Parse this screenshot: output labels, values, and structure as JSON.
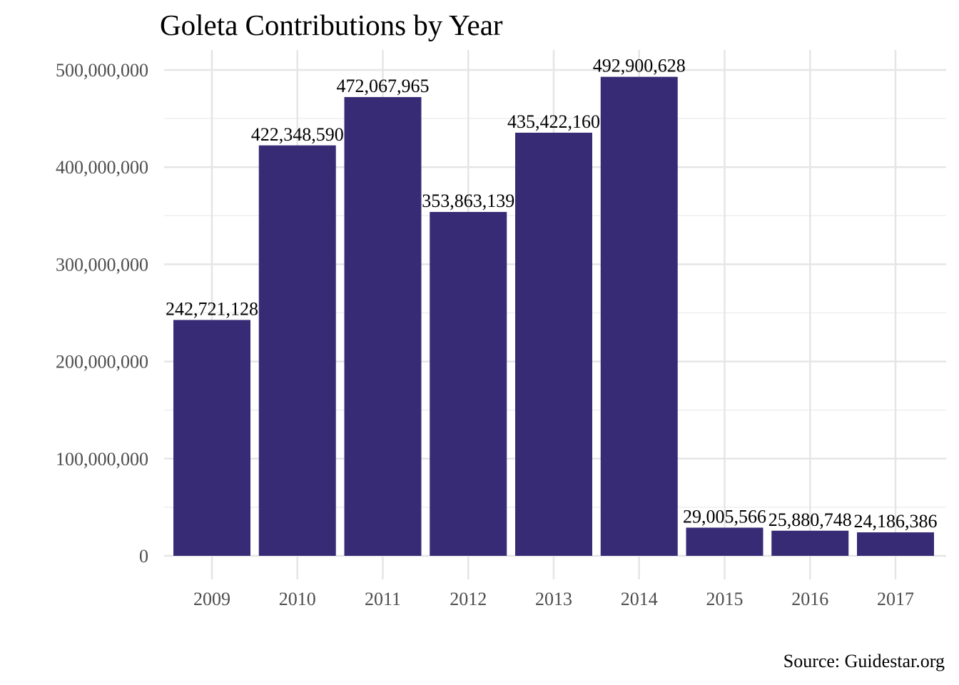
{
  "chart_data": {
    "type": "bar",
    "title": "Goleta Contributions by Year",
    "caption": "Source: Guidestar.org",
    "xlabel": "",
    "ylabel": "",
    "categories": [
      "2009",
      "2010",
      "2011",
      "2012",
      "2013",
      "2014",
      "2015",
      "2016",
      "2017"
    ],
    "values": [
      242721128,
      422348590,
      472067965,
      353863139,
      435422160,
      492900628,
      29005566,
      25880748,
      24186386
    ],
    "data_labels": [
      "242,721,128",
      "422,348,590",
      "472,067,965",
      "353,863,139",
      "435,422,160",
      "492,900,628",
      "29,005,566",
      "25,880,748",
      "24,186,386"
    ],
    "yticks": [
      0,
      100000000,
      200000000,
      300000000,
      400000000,
      500000000
    ],
    "ytick_labels": [
      "0",
      "100,000,000",
      "200,000,000",
      "300,000,000",
      "400,000,000",
      "500,000,000"
    ],
    "ylim": [
      0,
      500000000
    ],
    "grid": true,
    "legend": "none",
    "bar_color": "#382b76"
  }
}
